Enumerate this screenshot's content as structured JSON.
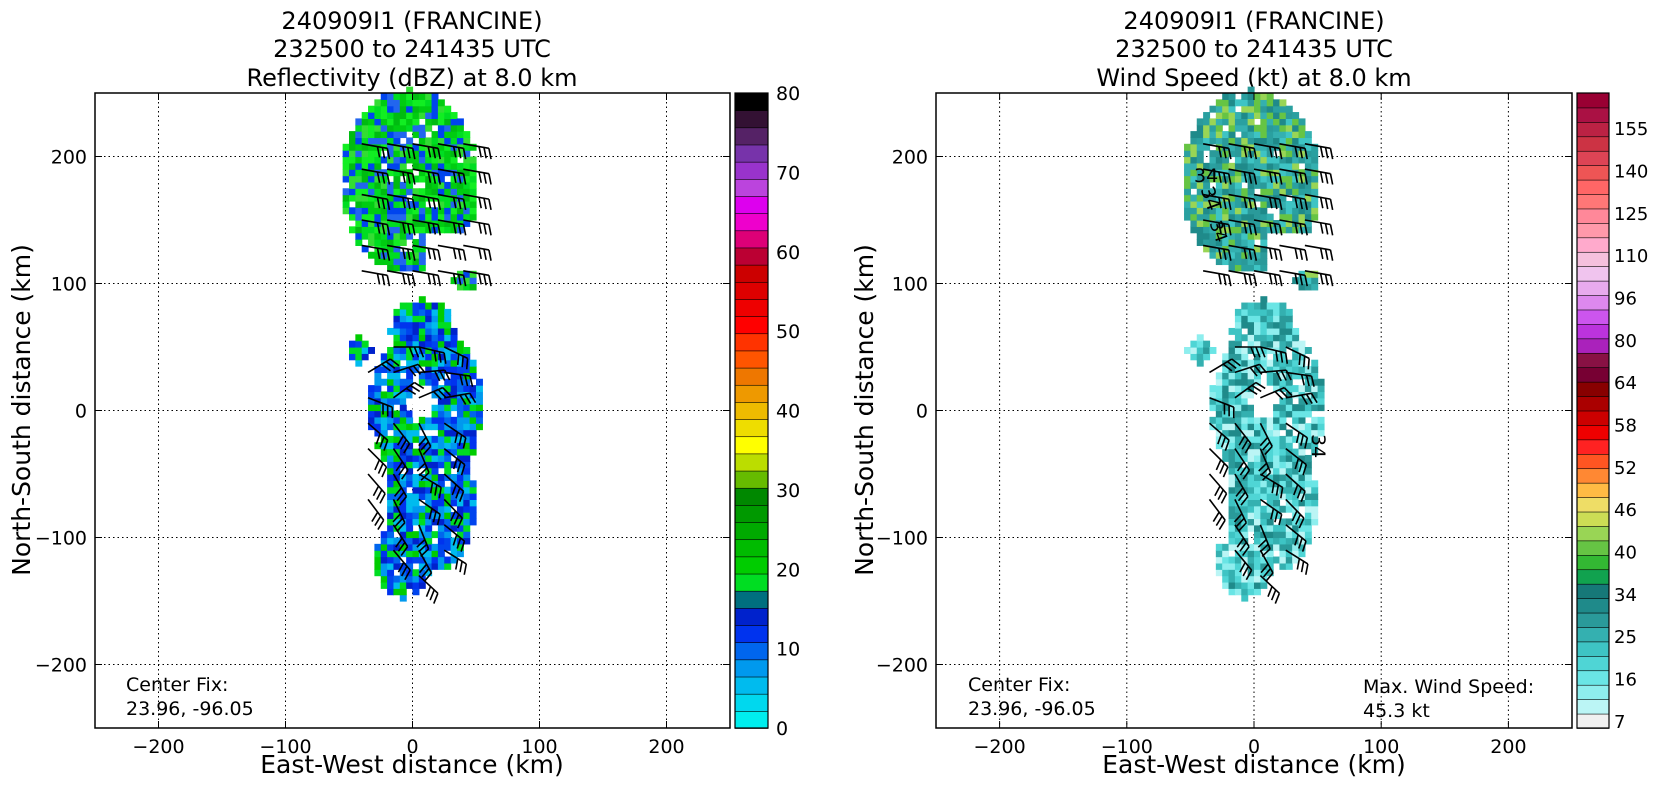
{
  "chart_data": [
    {
      "type": "heatmap",
      "title_lines": [
        "240909I1 (FRANCINE)",
        "232500 to 241435 UTC",
        "Reflectivity (dBZ) at 8.0 km"
      ],
      "xlabel": "East-West distance (km)",
      "ylabel": "North-South distance (km)",
      "xlim": [
        -250,
        250
      ],
      "ylim": [
        -250,
        250
      ],
      "x_ticks": [
        -200,
        -100,
        0,
        100,
        200
      ],
      "y_ticks": [
        -200,
        -100,
        0,
        100,
        200
      ],
      "x_tick_labels": [
        "−200",
        "−100",
        "0",
        "100",
        "200"
      ],
      "y_tick_labels": [
        "−200",
        "−100",
        "0",
        "100",
        "200"
      ],
      "grid": true,
      "center_fix_label": "Center Fix:",
      "center_fix_value": "23.96, -96.05",
      "colorbar": {
        "min": 0,
        "max": 80,
        "ticks": [
          0,
          10,
          20,
          30,
          40,
          50,
          60,
          70,
          80
        ],
        "colors": [
          "#00eeee",
          "#00d8ee",
          "#00bbee",
          "#0099ee",
          "#0066ee",
          "#0033ee",
          "#0022cc",
          "#006f7f",
          "#00dd22",
          "#00cc00",
          "#00bb00",
          "#00aa00",
          "#009900",
          "#008800",
          "#66bb00",
          "#bbdd00",
          "#ffff00",
          "#eedd00",
          "#eebb00",
          "#ee9900",
          "#ee7700",
          "#ff5500",
          "#ff3300",
          "#ff0000",
          "#ee0000",
          "#dd0000",
          "#cc0000",
          "#bb0033",
          "#dd0077",
          "#ee00cc",
          "#dd00ee",
          "#bb44dd",
          "#9933cc",
          "#7733aa",
          "#552266",
          "#331133",
          "#000000"
        ]
      },
      "echo_regions": [
        {
          "name": "northern band",
          "x_range": [
            -57,
            50
          ],
          "y_range": [
            105,
            248
          ],
          "value_dbz": 22
        },
        {
          "name": "inner core",
          "x_range": [
            -45,
            45
          ],
          "y_range": [
            -148,
            80
          ],
          "value_dbz": 12
        }
      ]
    },
    {
      "type": "heatmap",
      "title_lines": [
        "240909I1 (FRANCINE)",
        "232500 to 241435 UTC",
        "Wind Speed (kt) at 8.0 km"
      ],
      "xlabel": "East-West distance (km)",
      "ylabel": "North-South distance (km)",
      "xlim": [
        -250,
        250
      ],
      "ylim": [
        -250,
        250
      ],
      "x_ticks": [
        -200,
        -100,
        0,
        100,
        200
      ],
      "y_ticks": [
        -200,
        -100,
        0,
        100,
        200
      ],
      "x_tick_labels": [
        "−200",
        "−100",
        "0",
        "100",
        "200"
      ],
      "y_tick_labels": [
        "−200",
        "−100",
        "0",
        "100",
        "200"
      ],
      "grid": true,
      "center_fix_label": "Center Fix:",
      "center_fix_value": "23.96, -96.05",
      "max_wind_label": "Max. Wind Speed:",
      "max_wind_value": "45.3 kt",
      "contour_labels": [
        "34",
        "34",
        "34",
        "34"
      ],
      "colorbar": {
        "tick_labels": [
          "7",
          "16",
          "25",
          "34",
          "40",
          "46",
          "52",
          "58",
          "64",
          "80",
          "96",
          "110",
          "125",
          "140",
          "155"
        ],
        "colors": [
          "#f0f0f0",
          "#bbf5f5",
          "#8eeeee",
          "#6ae5e5",
          "#4fd5d5",
          "#3ec4c4",
          "#34b0b0",
          "#2a9a9a",
          "#1f8a8a",
          "#167878",
          "#11a24f",
          "#33b833",
          "#66c444",
          "#99d555",
          "#ccdd55",
          "#eedd66",
          "#ffbb44",
          "#ff8833",
          "#ff5522",
          "#ff2222",
          "#ee0000",
          "#cc0000",
          "#aa0000",
          "#880000",
          "#770033",
          "#881144",
          "#aa22bb",
          "#bb33dd",
          "#cc55ee",
          "#dd88ee",
          "#e8aaee",
          "#f0c4ee",
          "#f5c0dd",
          "#ffaacc",
          "#ff99aa",
          "#ff8899",
          "#ff7777",
          "#ff6666",
          "#ee5555",
          "#dd4455",
          "#cc3344",
          "#bb2244",
          "#aa1144",
          "#990033"
        ]
      },
      "wind_regions": [
        {
          "name": "northern band",
          "x_range": [
            -57,
            48
          ],
          "y_range": [
            105,
            235
          ],
          "value_kt": 25
        },
        {
          "name": "inner core",
          "x_range": [
            -50,
            45
          ],
          "y_range": [
            -140,
            80
          ],
          "value_kt": 18
        }
      ]
    }
  ]
}
